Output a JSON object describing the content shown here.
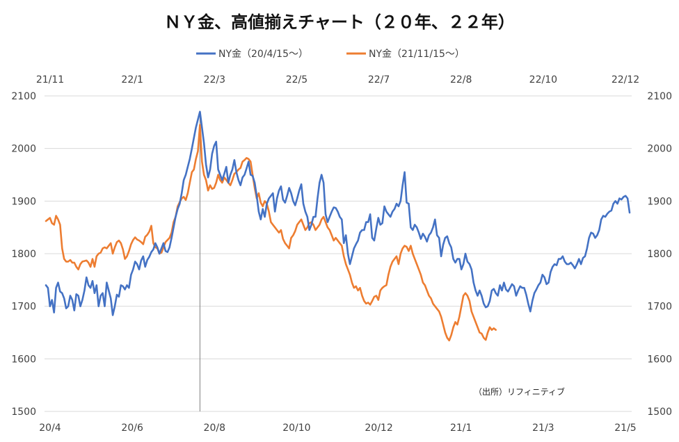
{
  "chart_data": {
    "type": "line",
    "title": "ＮＹ金、高値揃えチャート（２０年、２２年）",
    "source_note": "（出所）リフィニティブ",
    "ylim": [
      1500,
      2100
    ],
    "y_ticks": [
      "1500",
      "1600",
      "1700",
      "1800",
      "1900",
      "2000",
      "2100"
    ],
    "x_bottom_ticks": [
      "20/4",
      "20/6",
      "20/8",
      "20/10",
      "20/12",
      "21/1",
      "21/3",
      "21/5"
    ],
    "x_top_ticks": [
      "21/11",
      "22/1",
      "22/3",
      "22/5",
      "22/7",
      "22/8",
      "22/10",
      "22/12"
    ],
    "legend_position": "top-center",
    "grid": true,
    "aligned_peak_index": 76,
    "series": [
      {
        "name": "NY金（20/4/15～）",
        "axis": "bottom",
        "color": "#4472C4",
        "values": [
          1740,
          1735,
          1700,
          1712,
          1688,
          1735,
          1745,
          1728,
          1725,
          1715,
          1696,
          1700,
          1720,
          1712,
          1692,
          1723,
          1720,
          1700,
          1712,
          1730,
          1755,
          1740,
          1735,
          1748,
          1725,
          1740,
          1700,
          1720,
          1725,
          1700,
          1745,
          1730,
          1715,
          1683,
          1700,
          1722,
          1718,
          1740,
          1738,
          1732,
          1740,
          1735,
          1760,
          1770,
          1785,
          1780,
          1770,
          1787,
          1795,
          1775,
          1788,
          1794,
          1803,
          1808,
          1820,
          1812,
          1800,
          1810,
          1820,
          1805,
          1803,
          1812,
          1830,
          1850,
          1870,
          1885,
          1895,
          1915,
          1940,
          1950,
          1965,
          1980,
          2000,
          2020,
          2040,
          2055,
          2070,
          2040,
          2010,
          1970,
          1945,
          1960,
          1990,
          2005,
          2013,
          1960,
          1950,
          1940,
          1952,
          1965,
          1935,
          1950,
          1960,
          1978,
          1955,
          1940,
          1930,
          1945,
          1950,
          1962,
          1975,
          1950,
          1948,
          1935,
          1910,
          1880,
          1865,
          1885,
          1870,
          1895,
          1905,
          1910,
          1915,
          1880,
          1905,
          1920,
          1928,
          1903,
          1897,
          1910,
          1925,
          1915,
          1900,
          1892,
          1905,
          1920,
          1932,
          1895,
          1880,
          1870,
          1845,
          1855,
          1870,
          1870,
          1905,
          1935,
          1950,
          1935,
          1875,
          1860,
          1870,
          1880,
          1888,
          1887,
          1880,
          1870,
          1865,
          1820,
          1835,
          1800,
          1780,
          1795,
          1810,
          1818,
          1825,
          1840,
          1845,
          1845,
          1860,
          1860,
          1875,
          1830,
          1825,
          1848,
          1868,
          1855,
          1858,
          1890,
          1880,
          1875,
          1870,
          1880,
          1885,
          1895,
          1890,
          1900,
          1930,
          1955,
          1897,
          1895,
          1850,
          1845,
          1855,
          1850,
          1840,
          1828,
          1838,
          1832,
          1823,
          1835,
          1840,
          1850,
          1865,
          1835,
          1830,
          1795,
          1817,
          1830,
          1833,
          1820,
          1812,
          1790,
          1783,
          1790,
          1790,
          1770,
          1780,
          1800,
          1785,
          1780,
          1770,
          1745,
          1730,
          1720,
          1730,
          1720,
          1705,
          1698,
          1700,
          1710,
          1730,
          1733,
          1725,
          1720,
          1740,
          1730,
          1745,
          1732,
          1728,
          1735,
          1742,
          1738,
          1720,
          1730,
          1738,
          1735,
          1735,
          1722,
          1705,
          1690,
          1710,
          1725,
          1732,
          1740,
          1745,
          1760,
          1755,
          1742,
          1745,
          1765,
          1775,
          1780,
          1778,
          1790,
          1790,
          1795,
          1785,
          1780,
          1780,
          1783,
          1778,
          1772,
          1780,
          1790,
          1780,
          1792,
          1795,
          1810,
          1830,
          1840,
          1838,
          1830,
          1835,
          1845,
          1865,
          1872,
          1870,
          1876,
          1880,
          1882,
          1895,
          1900,
          1895,
          1905,
          1903,
          1908,
          1910,
          1905,
          1878
        ]
      },
      {
        "name": "NY金（21/11/15～）",
        "axis": "top",
        "color": "#ED7D31",
        "values": [
          1862,
          1865,
          1868,
          1858,
          1855,
          1872,
          1865,
          1855,
          1810,
          1790,
          1785,
          1785,
          1788,
          1783,
          1783,
          1775,
          1770,
          1780,
          1785,
          1786,
          1787,
          1783,
          1775,
          1790,
          1775,
          1795,
          1800,
          1802,
          1810,
          1812,
          1810,
          1815,
          1820,
          1800,
          1812,
          1822,
          1825,
          1820,
          1808,
          1790,
          1795,
          1805,
          1818,
          1826,
          1831,
          1827,
          1825,
          1822,
          1818,
          1832,
          1836,
          1842,
          1853,
          1820,
          1812,
          1810,
          1800,
          1802,
          1812,
          1822,
          1826,
          1830,
          1840,
          1860,
          1870,
          1890,
          1898,
          1905,
          1908,
          1902,
          1915,
          1935,
          1955,
          1960,
          1980,
          1995,
          2045,
          1975,
          1950,
          1940,
          1920,
          1930,
          1923,
          1925,
          1935,
          1950,
          1940,
          1935,
          1945,
          1940,
          1935,
          1930,
          1940,
          1952,
          1955,
          1960,
          1963,
          1975,
          1978,
          1982,
          1980,
          1975,
          1950,
          1925,
          1905,
          1915,
          1897,
          1890,
          1900,
          1895,
          1880,
          1860,
          1855,
          1850,
          1845,
          1840,
          1845,
          1828,
          1820,
          1815,
          1810,
          1830,
          1835,
          1843,
          1855,
          1860,
          1865,
          1855,
          1845,
          1850,
          1858,
          1860,
          1855,
          1845,
          1850,
          1855,
          1865,
          1870,
          1860,
          1850,
          1845,
          1835,
          1825,
          1830,
          1825,
          1820,
          1815,
          1795,
          1780,
          1770,
          1760,
          1745,
          1735,
          1738,
          1730,
          1735,
          1720,
          1710,
          1705,
          1707,
          1703,
          1710,
          1718,
          1720,
          1712,
          1730,
          1735,
          1738,
          1740,
          1760,
          1775,
          1785,
          1790,
          1795,
          1780,
          1800,
          1810,
          1815,
          1813,
          1805,
          1815,
          1800,
          1790,
          1780,
          1770,
          1760,
          1745,
          1740,
          1730,
          1720,
          1715,
          1705,
          1700,
          1695,
          1690,
          1680,
          1665,
          1650,
          1640,
          1635,
          1645,
          1660,
          1670,
          1665,
          1680,
          1700,
          1720,
          1725,
          1720,
          1710,
          1690,
          1680,
          1670,
          1660,
          1650,
          1648,
          1640,
          1636,
          1650,
          1660,
          1655,
          1658,
          1655
        ]
      }
    ]
  }
}
